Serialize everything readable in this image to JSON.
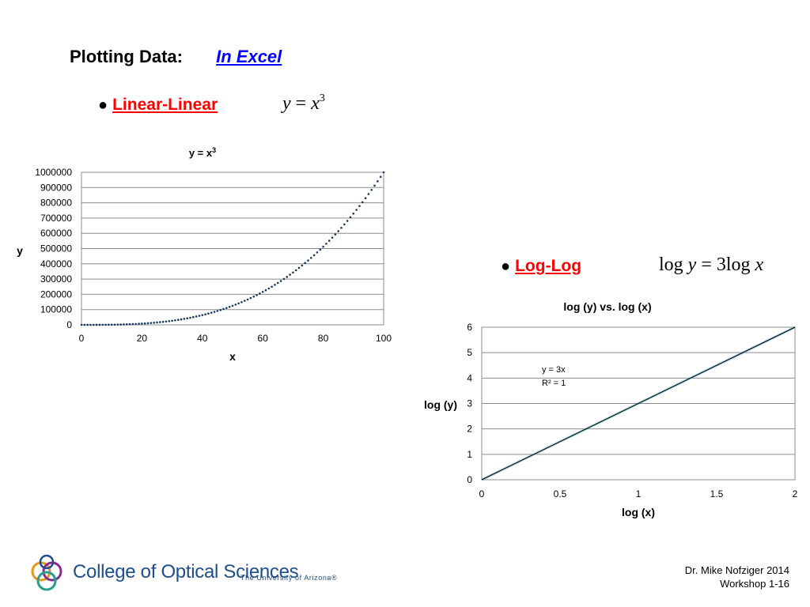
{
  "heading": {
    "title": "Plotting Data:",
    "link": "In Excel"
  },
  "section1": {
    "bullet": "●",
    "label": "Linear-Linear",
    "equation": {
      "lhs": "y",
      "eq": "=",
      "base": "x",
      "exp": "3"
    }
  },
  "section2": {
    "bullet": "●",
    "label": "Log-Log ",
    "equation": {
      "log1": "log",
      "y": "y",
      "eq": "=",
      "coef": "3log",
      "x": "x"
    }
  },
  "footer": {
    "author": "Dr. Mike Nofziger   2014",
    "slide": "Workshop 1-16"
  },
  "logo": {
    "name": "College of Optical Sciences",
    "sub": "The University of Arizona®"
  },
  "colors": {
    "link": "#0000ff",
    "bullet_label": "#ff0000",
    "series1": "#17375e",
    "trend": "#000000",
    "logo": "#1f4e8c"
  },
  "chart_data": [
    {
      "type": "scatter",
      "title": "y = x",
      "title_sup": "3",
      "xlabel": "x",
      "ylabel": "y",
      "xlim": [
        0,
        100
      ],
      "ylim": [
        0,
        1000000
      ],
      "xticks": [
        "0",
        "20",
        "40",
        "60",
        "80",
        "100"
      ],
      "yticks": [
        "0",
        "100000",
        "200000",
        "300000",
        "400000",
        "500000",
        "600000",
        "700000",
        "800000",
        "900000",
        "1000000"
      ],
      "grid": true,
      "series": [
        {
          "function": "y = x^3",
          "x_from": 0,
          "x_to": 100,
          "x_step": 1
        }
      ]
    },
    {
      "type": "line",
      "title": "log (y) vs. log (x)",
      "xlabel": "log (x)",
      "ylabel": "log (y)",
      "xlim": [
        0,
        2
      ],
      "ylim": [
        0,
        6
      ],
      "xticks": [
        "0",
        "0.5",
        "1",
        "1.5",
        "2"
      ],
      "yticks": [
        "0",
        "1",
        "2",
        "3",
        "4",
        "5",
        "6"
      ],
      "grid": true,
      "series": [
        {
          "x": [
            0,
            2
          ],
          "y": [
            0,
            6
          ]
        }
      ],
      "trendline": {
        "equation": "y = 3x",
        "r2": "R² = 1"
      }
    }
  ]
}
